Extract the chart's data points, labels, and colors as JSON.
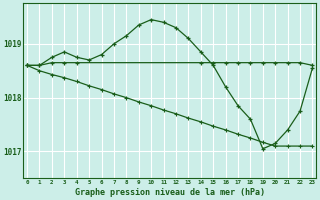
{
  "background_color": "#cceee8",
  "plot_bg_color": "#cceee8",
  "grid_color": "#ffffff",
  "line_color": "#1a5e1a",
  "title": "Graphe pression niveau de la mer (hPa)",
  "hours": [
    0,
    1,
    2,
    3,
    4,
    5,
    6,
    7,
    8,
    9,
    10,
    11,
    12,
    13,
    14,
    15,
    16,
    17,
    18,
    19,
    20,
    21,
    22,
    23
  ],
  "ylim": [
    1016.5,
    1019.75
  ],
  "yticks": [
    1017,
    1018,
    1019
  ],
  "series1": [
    1018.6,
    1018.6,
    1018.75,
    1018.85,
    1018.75,
    1018.7,
    1018.8,
    1019.0,
    1019.15,
    1019.35,
    1019.45,
    1019.4,
    1019.3,
    1019.1,
    1018.85,
    1018.6,
    1018.2,
    1017.85,
    1017.6,
    1017.05,
    1017.15,
    1017.4,
    1017.75,
    1018.55
  ],
  "series2_x": [
    0,
    1,
    2,
    3,
    4,
    14,
    15,
    16,
    17,
    18,
    19,
    20,
    21,
    22,
    23
  ],
  "series2_y": [
    1018.6,
    1018.6,
    1018.65,
    1018.65,
    1018.65,
    1018.65,
    1018.65,
    1018.65,
    1018.65,
    1018.65,
    1018.65,
    1018.65,
    1018.65,
    1018.65,
    1018.6
  ],
  "series3_x": [
    0,
    1,
    2,
    3,
    4,
    5,
    6,
    7,
    8,
    9,
    10,
    11,
    12,
    13,
    14,
    15,
    16,
    17,
    18,
    19,
    20,
    21,
    22,
    23
  ],
  "series3_y": [
    1018.6,
    1018.5,
    1018.43,
    1018.37,
    1018.3,
    1018.22,
    1018.15,
    1018.07,
    1018.0,
    1017.92,
    1017.85,
    1017.77,
    1017.7,
    1017.62,
    1017.55,
    1017.47,
    1017.4,
    1017.32,
    1017.25,
    1017.17,
    1017.1,
    1017.1,
    1017.1,
    1017.1
  ]
}
